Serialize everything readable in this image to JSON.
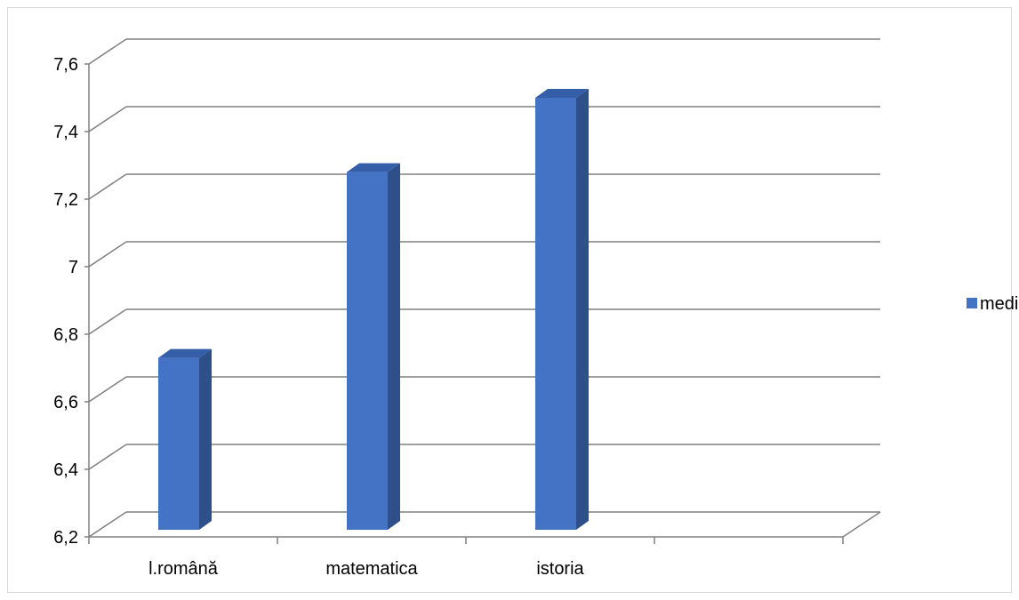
{
  "chart_data": {
    "type": "bar",
    "style": "3d-clustered-column",
    "categories": [
      "l.română",
      "matematica",
      "istoria",
      ""
    ],
    "series": [
      {
        "name": "media",
        "values": [
          6.73,
          7.28,
          7.5,
          null
        ]
      }
    ],
    "title": "",
    "xlabel": "",
    "ylabel": "",
    "ylim": [
      6.2,
      7.6
    ],
    "yticks": [
      "6,2",
      "6,4",
      "6,6",
      "6,8",
      "7",
      "7,2",
      "7,4",
      "7,6"
    ],
    "ytick_values": [
      6.2,
      6.4,
      6.6,
      6.8,
      7.0,
      7.2,
      7.4,
      7.6
    ],
    "grid": true,
    "legend": "right",
    "colors": {
      "bar_front": "#4472C4",
      "bar_side": "#2F4F8A",
      "bar_top": "#355EA8",
      "grid": "#808080"
    }
  }
}
